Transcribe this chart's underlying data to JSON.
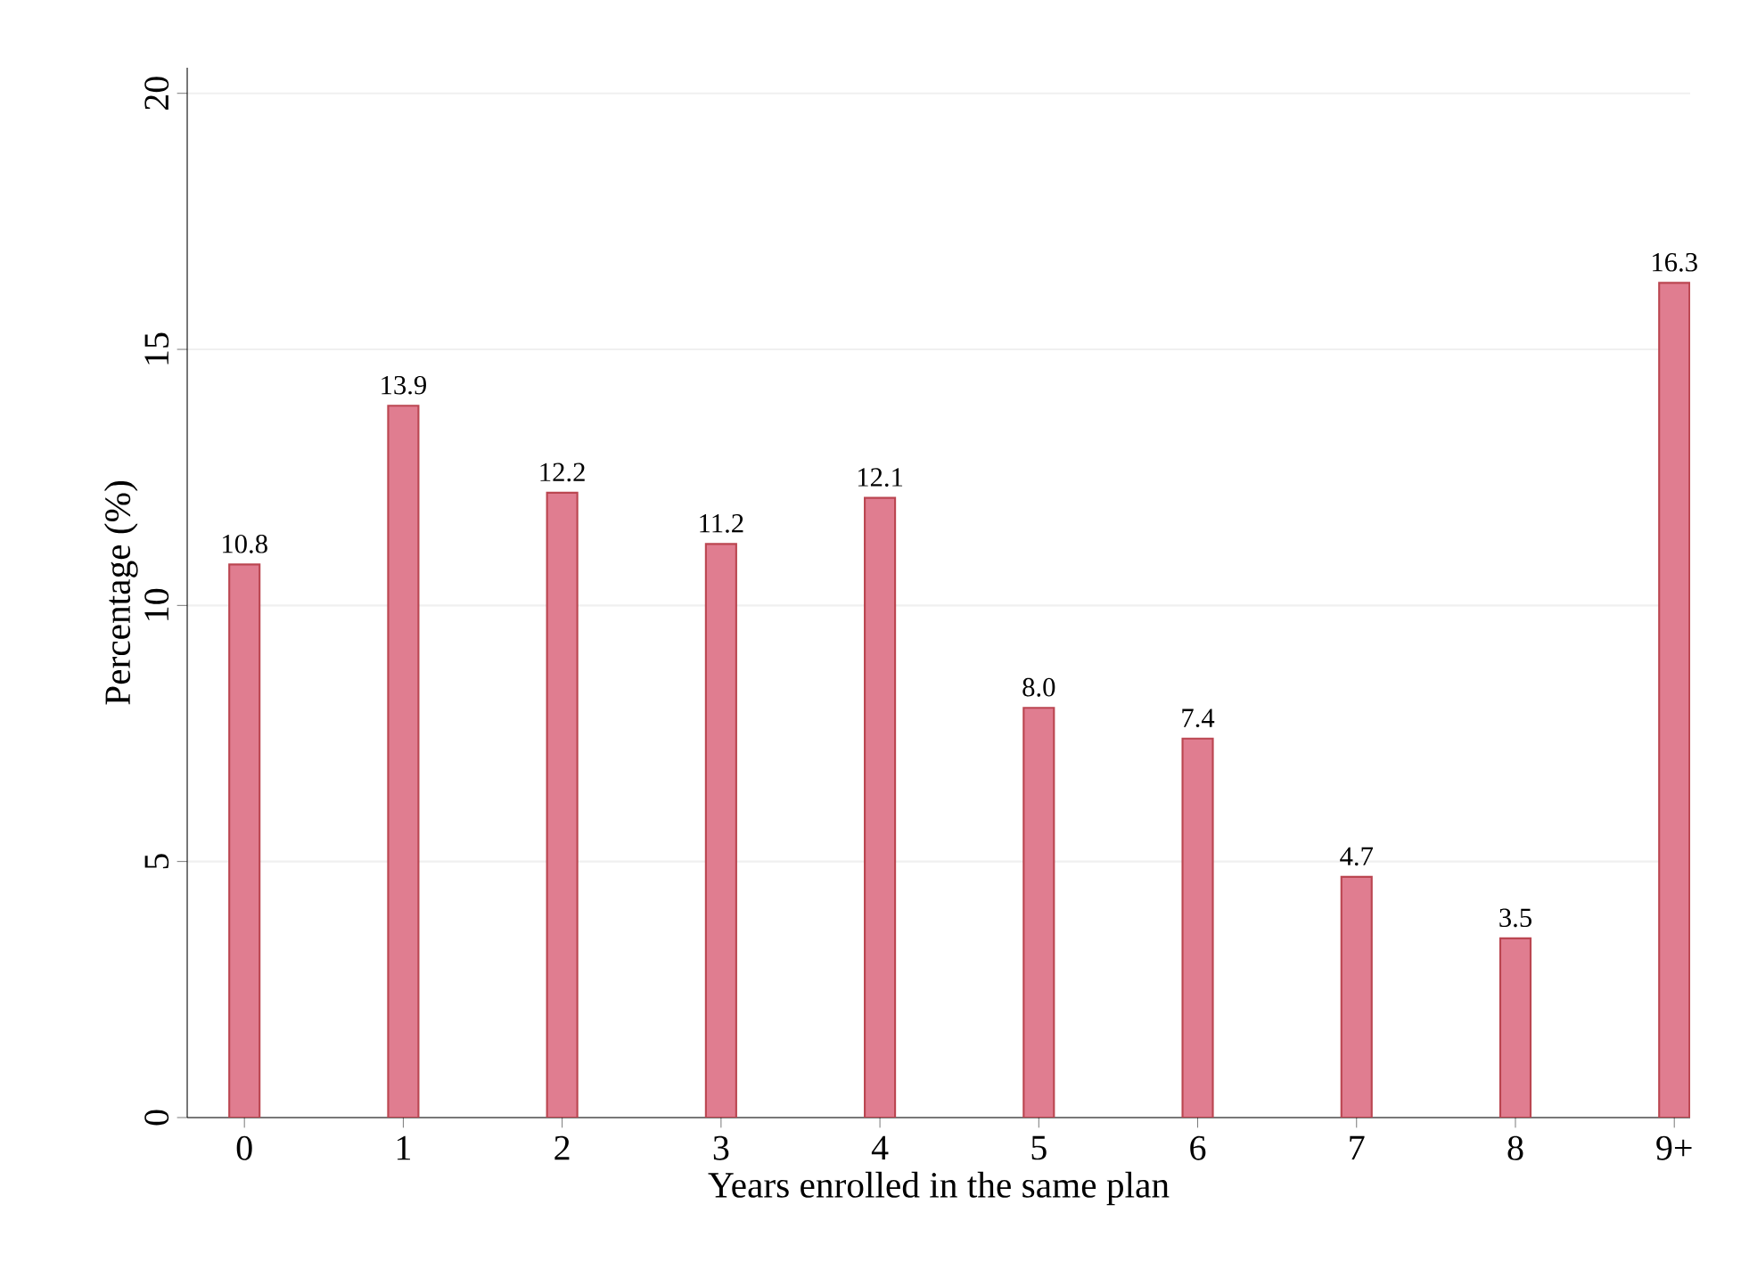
{
  "chart_data": {
    "type": "bar",
    "xlabel": "Years enrolled in the same plan",
    "ylabel": "Percentage (%)",
    "categories": [
      "0",
      "1",
      "2",
      "3",
      "4",
      "5",
      "6",
      "7",
      "8",
      "9+"
    ],
    "values": [
      10.8,
      13.9,
      12.2,
      11.2,
      12.1,
      8.0,
      7.4,
      4.7,
      3.5,
      16.3
    ],
    "color": "#e07d90",
    "value_labels": [
      "10.8",
      "13.9",
      "12.2",
      "11.2",
      "12.1",
      "8.0",
      "7.4",
      "4.7",
      "3.5",
      "16.3"
    ],
    "ylim": [
      0,
      20.5
    ],
    "yticks": [
      0,
      5,
      10,
      15,
      20
    ],
    "grid": "y"
  }
}
